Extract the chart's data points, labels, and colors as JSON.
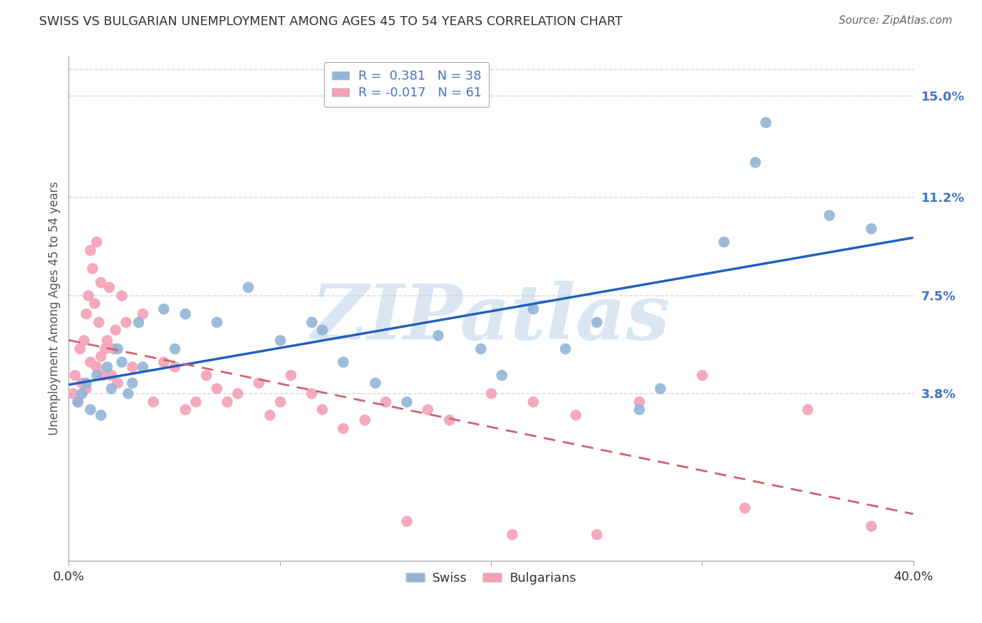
{
  "title": "SWISS VS BULGARIAN UNEMPLOYMENT AMONG AGES 45 TO 54 YEARS CORRELATION CHART",
  "source": "Source: ZipAtlas.com",
  "ylabel": "Unemployment Among Ages 45 to 54 years",
  "xlabel": "",
  "xlim": [
    0.0,
    40.0
  ],
  "ylim": [
    -2.5,
    16.5
  ],
  "yticks": [
    3.8,
    7.5,
    11.2,
    15.0
  ],
  "xticks": [
    0.0,
    10.0,
    20.0,
    30.0,
    40.0
  ],
  "xtick_labels": [
    "0.0%",
    "",
    "",
    "",
    "40.0%"
  ],
  "ytick_labels": [
    "3.8%",
    "7.5%",
    "11.2%",
    "15.0%"
  ],
  "swiss_color": "#92b4d7",
  "bulgarian_color": "#f4a0b5",
  "swiss_line_color": "#2060c0",
  "bulgarian_line_color": "#d06070",
  "swiss_R": 0.381,
  "swiss_N": 38,
  "bulgarian_R": -0.017,
  "bulgarian_N": 61,
  "watermark": "ZIPatlas",
  "swiss_x": [
    0.4,
    0.6,
    0.8,
    1.0,
    1.3,
    1.5,
    1.8,
    2.0,
    2.3,
    2.5,
    2.8,
    3.0,
    3.3,
    3.5,
    4.5,
    5.0,
    5.5,
    7.0,
    8.5,
    10.0,
    11.5,
    12.0,
    13.0,
    14.5,
    16.0,
    17.5,
    19.5,
    20.5,
    22.0,
    23.5,
    25.0,
    27.0,
    28.0,
    31.0,
    32.5,
    33.0,
    36.0,
    38.0
  ],
  "swiss_y": [
    3.5,
    3.8,
    4.2,
    3.2,
    4.5,
    3.0,
    4.8,
    4.0,
    5.5,
    5.0,
    3.8,
    4.2,
    6.5,
    4.8,
    7.0,
    5.5,
    6.8,
    6.5,
    7.8,
    5.8,
    6.5,
    6.2,
    5.0,
    4.2,
    3.5,
    6.0,
    5.5,
    4.5,
    7.0,
    5.5,
    6.5,
    3.2,
    4.0,
    9.5,
    12.5,
    14.0,
    10.5,
    10.0
  ],
  "bulgarian_x": [
    0.2,
    0.3,
    0.4,
    0.5,
    0.6,
    0.7,
    0.8,
    0.8,
    0.9,
    1.0,
    1.0,
    1.1,
    1.2,
    1.3,
    1.3,
    1.4,
    1.5,
    1.5,
    1.6,
    1.7,
    1.8,
    1.9,
    2.0,
    2.1,
    2.2,
    2.3,
    2.5,
    2.7,
    3.0,
    3.5,
    4.0,
    4.5,
    5.0,
    5.5,
    6.0,
    6.5,
    7.0,
    7.5,
    8.0,
    9.0,
    9.5,
    10.0,
    10.5,
    11.5,
    12.0,
    13.0,
    14.0,
    15.0,
    16.0,
    17.0,
    18.0,
    20.0,
    21.0,
    22.0,
    24.0,
    25.0,
    27.0,
    30.0,
    32.0,
    35.0,
    38.0
  ],
  "bulgarian_y": [
    3.8,
    4.5,
    3.5,
    5.5,
    4.2,
    5.8,
    4.0,
    6.8,
    7.5,
    5.0,
    9.2,
    8.5,
    7.2,
    4.8,
    9.5,
    6.5,
    5.2,
    8.0,
    4.5,
    5.5,
    5.8,
    7.8,
    4.5,
    5.5,
    6.2,
    4.2,
    7.5,
    6.5,
    4.8,
    6.8,
    3.5,
    5.0,
    4.8,
    3.2,
    3.5,
    4.5,
    4.0,
    3.5,
    3.8,
    4.2,
    3.0,
    3.5,
    4.5,
    3.8,
    3.2,
    2.5,
    2.8,
    3.5,
    -1.0,
    3.2,
    2.8,
    3.8,
    -1.5,
    3.5,
    3.0,
    -1.5,
    3.5,
    4.5,
    -0.5,
    3.2,
    -1.2
  ],
  "background_color": "#ffffff",
  "grid_color": "#cccccc",
  "title_color": "#333333",
  "axis_label_color": "#555555",
  "right_tick_color": "#4472c4"
}
